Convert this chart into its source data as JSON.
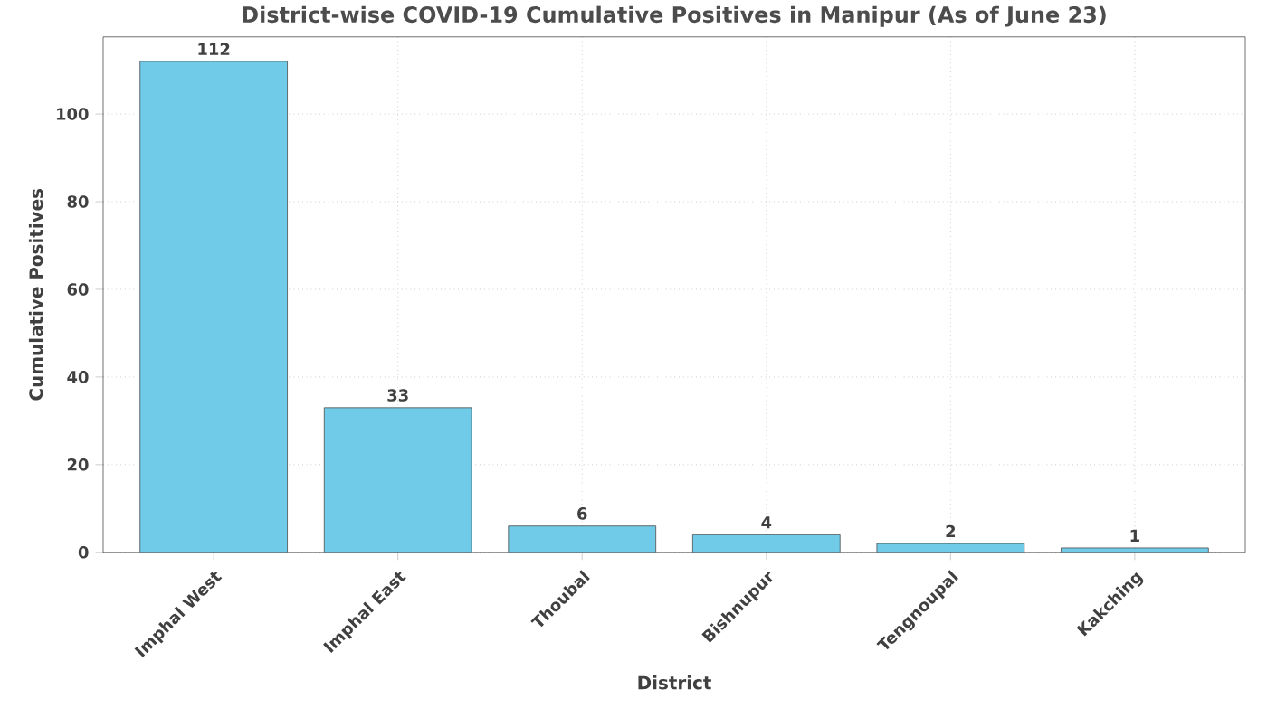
{
  "chart_data": {
    "type": "bar",
    "title": "District-wise COVID-19 Cumulative Positives in Manipur (As of June 23)",
    "xlabel": "District",
    "ylabel": "Cumulative Positives",
    "categories": [
      "Imphal West",
      "Imphal East",
      "Thoubal",
      "Bishnupur",
      "Tengnoupal",
      "Kakching"
    ],
    "values": [
      112,
      33,
      6,
      4,
      2,
      1
    ],
    "color": "#70cbe8",
    "ylim": [
      0,
      117.6
    ],
    "yticks": [
      0,
      20,
      40,
      60,
      80,
      100
    ],
    "grid": true,
    "data_labels": true
  }
}
